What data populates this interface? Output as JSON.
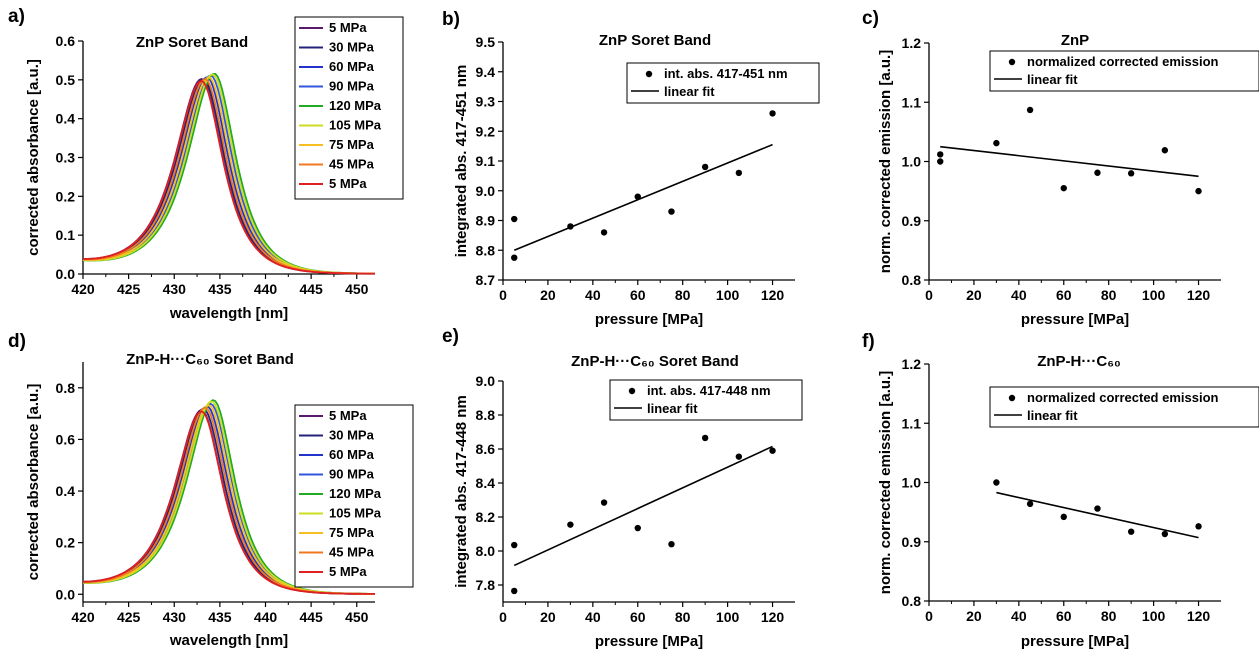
{
  "chart_data": [
    {
      "letter": "a)",
      "type": "line",
      "title": "ZnP Soret Band",
      "xlabel": "wavelength [nm]",
      "ylabel": "corrected absorbance [a.u.]",
      "xlim": [
        420,
        452
      ],
      "ylim": [
        0,
        0.6
      ],
      "xticks": [
        420,
        425,
        430,
        435,
        440,
        445,
        450
      ],
      "yticks": [
        "0.0",
        "0.1",
        "0.2",
        "0.3",
        "0.4",
        "0.5",
        "0.6"
      ],
      "legend": "top-right",
      "series": [
        {
          "name": "5 MPa",
          "color": "#5a1a6b",
          "peak_x": 433.0,
          "peak_y": 0.495
        },
        {
          "name": "30 MPa",
          "color": "#23237a",
          "peak_x": 433.2,
          "peak_y": 0.495
        },
        {
          "name": "60 MPa",
          "color": "#2233cc",
          "peak_x": 433.6,
          "peak_y": 0.5
        },
        {
          "name": "90 MPa",
          "color": "#3355dd",
          "peak_x": 434.0,
          "peak_y": 0.505
        },
        {
          "name": "120 MPa",
          "color": "#22aa22",
          "peak_x": 434.4,
          "peak_y": 0.51
        },
        {
          "name": "105 MPa",
          "color": "#ccdd22",
          "peak_x": 434.2,
          "peak_y": 0.508
        },
        {
          "name": "75 MPa",
          "color": "#f5c020",
          "peak_x": 433.8,
          "peak_y": 0.5
        },
        {
          "name": "45 MPa",
          "color": "#f07820",
          "peak_x": 433.4,
          "peak_y": 0.495
        },
        {
          "name": "5 MPa",
          "color": "#e02020",
          "peak_x": 433.0,
          "peak_y": 0.49
        }
      ]
    },
    {
      "letter": "b)",
      "type": "scatter",
      "title": "ZnP Soret Band",
      "xlabel": "pressure [MPa]",
      "ylabel": "integrated abs. 417-451 nm",
      "xlim": [
        0,
        130
      ],
      "ylim": [
        8.7,
        9.5
      ],
      "xticks": [
        0,
        20,
        40,
        60,
        80,
        100,
        120
      ],
      "yticks": [
        "8.7",
        "8.8",
        "8.9",
        "9.0",
        "9.1",
        "9.2",
        "9.3",
        "9.4",
        "9.5"
      ],
      "legend": "top-right",
      "series": [
        {
          "name": "int. abs. 417-451 nm",
          "x": [
            5,
            5,
            30,
            45,
            60,
            75,
            90,
            105,
            120
          ],
          "y": [
            8.905,
            8.775,
            8.88,
            8.86,
            8.98,
            8.93,
            9.08,
            9.06,
            9.26
          ]
        },
        {
          "name": "linear fit",
          "x": [
            5,
            120
          ],
          "y": [
            8.8,
            9.155
          ]
        }
      ]
    },
    {
      "letter": "c)",
      "type": "scatter",
      "title": "ZnP",
      "xlabel": "pressure [MPa]",
      "ylabel": "norm. corrected emission [a.u.]",
      "xlim": [
        0,
        130
      ],
      "ylim": [
        0.8,
        1.2
      ],
      "xticks": [
        0,
        20,
        40,
        60,
        80,
        100,
        120
      ],
      "yticks": [
        "0.8",
        "0.9",
        "1.0",
        "1.1",
        "1.2"
      ],
      "legend": "top-right",
      "series": [
        {
          "name": "normalized corrected emission",
          "x": [
            5,
            5,
            30,
            45,
            60,
            75,
            90,
            105,
            120
          ],
          "y": [
            1.012,
            1.0,
            1.031,
            1.087,
            0.955,
            0.981,
            0.98,
            1.019,
            0.95
          ]
        },
        {
          "name": "linear fit",
          "x": [
            5,
            120
          ],
          "y": [
            1.025,
            0.975
          ]
        }
      ]
    },
    {
      "letter": "d)",
      "type": "line",
      "title": "ZnP-H···C₆₀ Soret Band",
      "xlabel": "wavelength [nm]",
      "ylabel": "corrected absorbance [a.u.]",
      "xlim": [
        420,
        452
      ],
      "ylim": [
        -0.03,
        0.9
      ],
      "xticks": [
        420,
        425,
        430,
        435,
        440,
        445,
        450
      ],
      "yticks": [
        "0.0",
        "0.2",
        "0.4",
        "0.6",
        "0.8"
      ],
      "legend": "bottom-right",
      "series": [
        {
          "name": "5 MPa",
          "color": "#5a1a6b",
          "peak_x": 433.0,
          "peak_y": 0.705
        },
        {
          "name": "30 MPa",
          "color": "#23237a",
          "peak_x": 433.2,
          "peak_y": 0.71
        },
        {
          "name": "60 MPa",
          "color": "#2233cc",
          "peak_x": 433.6,
          "peak_y": 0.72
        },
        {
          "name": "90 MPa",
          "color": "#3355dd",
          "peak_x": 434.0,
          "peak_y": 0.73
        },
        {
          "name": "120 MPa",
          "color": "#22aa22",
          "peak_x": 434.3,
          "peak_y": 0.745
        },
        {
          "name": "105 MPa",
          "color": "#ccdd22",
          "peak_x": 434.1,
          "peak_y": 0.74
        },
        {
          "name": "75 MPa",
          "color": "#f5c020",
          "peak_x": 433.8,
          "peak_y": 0.725
        },
        {
          "name": "45 MPa",
          "color": "#f07820",
          "peak_x": 433.4,
          "peak_y": 0.715
        },
        {
          "name": "5 MPa",
          "color": "#e02020",
          "peak_x": 433.0,
          "peak_y": 0.7
        }
      ]
    },
    {
      "letter": "e)",
      "type": "scatter",
      "title": "ZnP-H···C₆₀ Soret Band",
      "xlabel": "pressure [MPa]",
      "ylabel": "integrated abs. 417-448 nm",
      "xlim": [
        0,
        130
      ],
      "ylim": [
        7.7,
        9.0
      ],
      "xticks": [
        0,
        20,
        40,
        60,
        80,
        100,
        120
      ],
      "yticks": [
        "7.8",
        "8.0",
        "8.2",
        "8.4",
        "8.6",
        "8.8",
        "9.0"
      ],
      "legend": "top-right",
      "series": [
        {
          "name": "int. abs. 417-448 nm",
          "x": [
            5,
            5,
            30,
            45,
            60,
            75,
            90,
            105,
            120
          ],
          "y": [
            8.035,
            7.765,
            8.155,
            8.285,
            8.135,
            8.04,
            8.665,
            8.555,
            8.59
          ]
        },
        {
          "name": "linear fit",
          "x": [
            5,
            120
          ],
          "y": [
            7.915,
            8.615
          ]
        }
      ]
    },
    {
      "letter": "f)",
      "type": "scatter",
      "title": "ZnP-H···C₆₀",
      "xlabel": "pressure [MPa]",
      "ylabel": "norm. corrected emission [a.u.]",
      "xlim": [
        0,
        130
      ],
      "ylim": [
        0.8,
        1.2
      ],
      "xticks": [
        0,
        20,
        40,
        60,
        80,
        100,
        120
      ],
      "yticks": [
        "0.8",
        "0.9",
        "1.0",
        "1.1",
        "1.2"
      ],
      "legend": "top-right",
      "series": [
        {
          "name": "normalized corrected emission",
          "x": [
            30,
            45,
            60,
            75,
            90,
            105,
            120
          ],
          "y": [
            1.0,
            0.964,
            0.942,
            0.956,
            0.917,
            0.913,
            0.926
          ]
        },
        {
          "name": "linear fit",
          "x": [
            30,
            120
          ],
          "y": [
            0.983,
            0.907
          ]
        }
      ]
    }
  ]
}
